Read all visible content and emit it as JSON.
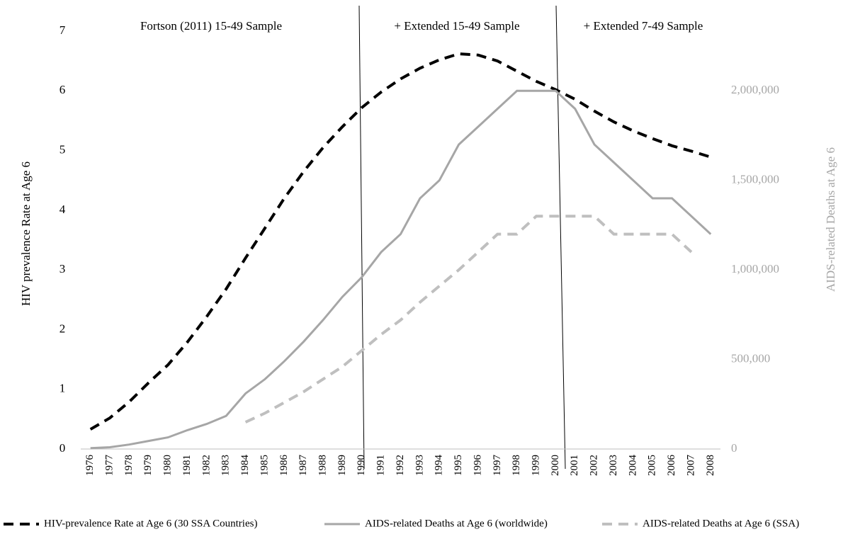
{
  "chart_data": {
    "type": "line",
    "left_axis_label": "HIV prevalence Rate at Age 6",
    "right_axis_label": "AIDS-related Deaths at Age 6",
    "annotations": [
      "Fortson (2011) 15-49 Sample",
      "+ Extended 15-49 Sample",
      "+ Extended 7-49 Sample"
    ],
    "categories": [
      "1976",
      "1977",
      "1978",
      "1979",
      "1980",
      "1981",
      "1982",
      "1983",
      "1984",
      "1985",
      "1986",
      "1987",
      "1988",
      "1989",
      "1990",
      "1991",
      "1992",
      "1993",
      "1994",
      "1995",
      "1996",
      "1997",
      "1998",
      "1999",
      "2000",
      "2001",
      "2002",
      "2003",
      "2004",
      "2005",
      "2006",
      "2007",
      "2008"
    ],
    "ylim": [
      0,
      7
    ],
    "yticks": [
      0,
      1,
      2,
      3,
      4,
      5,
      6,
      7
    ],
    "y2lim": [
      0,
      2333333
    ],
    "y2ticks": [
      0,
      {
        "value": 500000,
        "label": "500,000"
      },
      {
        "value": 1000000,
        "label": "1,000,000"
      },
      {
        "value": 1500000,
        "label": "1,500,000"
      },
      {
        "value": 2000000,
        "label": "2,000,000"
      }
    ],
    "series": [
      {
        "name": "HIV-prevalence Rate at Age 6 (30 SSA Countries)",
        "color": "#000000",
        "dash": true,
        "values": [
          0.33,
          0.52,
          0.79,
          1.11,
          1.41,
          1.79,
          2.22,
          2.68,
          3.2,
          3.7,
          4.2,
          4.65,
          5.05,
          5.4,
          5.72,
          5.98,
          6.2,
          6.38,
          6.52,
          6.62,
          6.6,
          6.5,
          6.33,
          6.16,
          6.02,
          5.86,
          5.66,
          5.48,
          5.33,
          5.2,
          5.08,
          4.99,
          4.89
        ]
      },
      {
        "name": "AIDS-related Deaths at Age 6 (worldwide)",
        "color": "#a6a6a6",
        "dash": false,
        "axis": "y2",
        "values": [
          5000,
          10000,
          25000,
          45000,
          65000,
          105000,
          140000,
          185000,
          310000,
          390000,
          490000,
          600000,
          720000,
          850000,
          960000,
          1100000,
          1200000,
          1400000,
          1500000,
          1700000,
          1800000,
          1900000,
          2000000,
          2000000,
          2000000,
          1900000,
          1700000,
          1600000,
          1500000,
          1400000,
          1400000,
          1300000,
          1200000
        ]
      },
      {
        "name": "AIDS-related Deaths at Age 6 (SSA)",
        "color": "#bfbfbf",
        "dash": true,
        "axis": "y2",
        "values": [
          null,
          null,
          null,
          null,
          null,
          null,
          null,
          null,
          150000,
          200000,
          260000,
          320000,
          390000,
          460000,
          550000,
          640000,
          720000,
          820000,
          910000,
          1000000,
          1100000,
          1200000,
          1200000,
          1300000,
          1300000,
          1300000,
          1300000,
          1200000,
          1200000,
          1200000,
          1200000,
          1100000,
          null
        ]
      }
    ]
  }
}
